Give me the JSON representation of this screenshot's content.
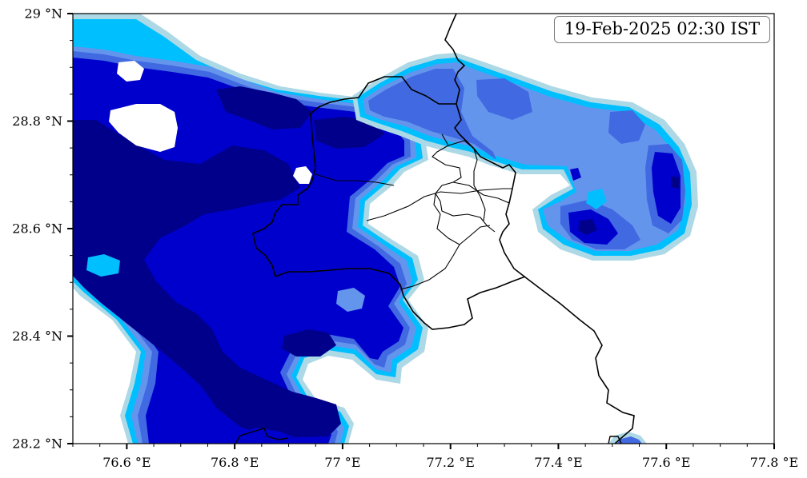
{
  "map": {
    "timestamp": "19-Feb-2025 02:30 IST",
    "lon_ticks": [
      "76.6 °E",
      "76.8 °E",
      "77 °E",
      "77.2 °E",
      "77.4 °E",
      "77.6 °E",
      "77.8 °E"
    ],
    "lat_ticks": [
      "29 °N",
      "28.8 °N",
      "28.6 °N",
      "28.4 °N",
      "28.2 °N"
    ],
    "lon_range": [
      76.5,
      77.8
    ],
    "lat_range": [
      28.2,
      29.0
    ],
    "colors": {
      "level1": "#add8e6",
      "level2": "#00bfff",
      "level3": "#6495ed",
      "level4": "#4169e1",
      "level5": "#0000cd",
      "level6": "#00008b",
      "boundary": "#000000"
    }
  }
}
